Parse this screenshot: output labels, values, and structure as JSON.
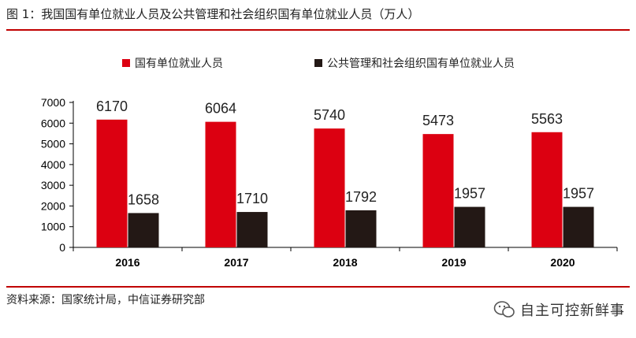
{
  "figure": {
    "title": "图 1：我国国有单位就业人员及公共管理和社会组织国有单位就业人员（万人）",
    "source": "资料来源：国家统计局，中信证券研究部",
    "watermark": "自主可控新鲜事"
  },
  "colors": {
    "series1": "#dc0011",
    "series2": "#231815",
    "rule": "#c00000"
  },
  "chart_data": {
    "type": "bar",
    "title": "我国国有单位就业人员及公共管理和社会组织国有单位就业人员（万人）",
    "xlabel": "",
    "ylabel": "",
    "categories": [
      "2016",
      "2017",
      "2018",
      "2019",
      "2020"
    ],
    "series": [
      {
        "name": "国有单位就业人员",
        "values": [
          6170,
          6064,
          5740,
          5473,
          5563
        ]
      },
      {
        "name": "公共管理和社会组织国有单位就业人员",
        "values": [
          1658,
          1710,
          1792,
          1957,
          1957
        ]
      }
    ],
    "ylim": [
      0,
      7000
    ],
    "yticks": [
      0,
      1000,
      2000,
      3000,
      4000,
      5000,
      6000,
      7000
    ],
    "grid": false,
    "legend_position": "top-center",
    "data_labels": true
  }
}
